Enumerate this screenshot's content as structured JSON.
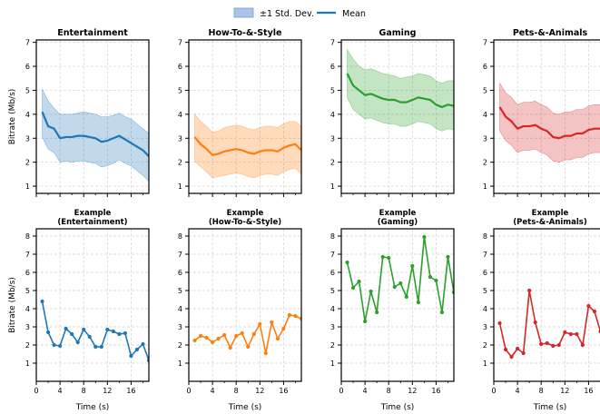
{
  "legend": {
    "band_label": "±1 Std. Dev.",
    "mean_label": "Mean",
    "band_color": "#a9c4e6",
    "mean_color": "#1f77b4"
  },
  "colors": {
    "blue": "#1f77b4",
    "orange": "#ff7f0e",
    "green": "#2ca02c",
    "red": "#d62728"
  },
  "chart_data": [
    {
      "type": "area",
      "title": "Entertainment",
      "ylabel": "Bitrate (Mb/s)",
      "xlabel": "",
      "ylim": [
        0.7,
        7.1
      ],
      "xlim": [
        0,
        19
      ],
      "grid": true,
      "color": "#1f77b4",
      "x": [
        1,
        2,
        3,
        4,
        5,
        6,
        7,
        8,
        9,
        10,
        11,
        12,
        13,
        14,
        15,
        16,
        17,
        18,
        19
      ],
      "mean": [
        4.1,
        3.5,
        3.4,
        3.0,
        3.05,
        3.05,
        3.1,
        3.1,
        3.05,
        3.0,
        2.85,
        2.9,
        3.0,
        3.1,
        2.95,
        2.8,
        2.65,
        2.5,
        2.25
      ],
      "upper": [
        5.05,
        4.55,
        4.25,
        4.0,
        4.0,
        4.0,
        4.05,
        4.1,
        4.05,
        4.0,
        3.9,
        3.9,
        3.95,
        4.05,
        3.9,
        3.8,
        3.6,
        3.4,
        3.2
      ],
      "lower": [
        3.05,
        2.55,
        2.4,
        2.0,
        2.05,
        2.0,
        2.05,
        2.05,
        2.0,
        1.95,
        1.8,
        1.85,
        1.95,
        2.1,
        1.95,
        1.85,
        1.65,
        1.45,
        1.2
      ],
      "yticks": [
        1,
        2,
        3,
        4,
        5,
        6,
        7
      ],
      "xticks": []
    },
    {
      "type": "area",
      "title": "How-To-&-Style",
      "ylabel": "",
      "xlabel": "",
      "ylim": [
        0.7,
        7.1
      ],
      "xlim": [
        0,
        19
      ],
      "grid": true,
      "color": "#ff7f0e",
      "x": [
        1,
        2,
        3,
        4,
        5,
        6,
        7,
        8,
        9,
        10,
        11,
        12,
        13,
        14,
        15,
        16,
        17,
        18,
        19
      ],
      "mean": [
        3.05,
        2.75,
        2.55,
        2.3,
        2.35,
        2.45,
        2.5,
        2.55,
        2.5,
        2.4,
        2.35,
        2.45,
        2.5,
        2.5,
        2.45,
        2.6,
        2.7,
        2.75,
        2.5
      ],
      "upper": [
        4.0,
        3.7,
        3.5,
        3.25,
        3.3,
        3.45,
        3.5,
        3.55,
        3.5,
        3.4,
        3.35,
        3.45,
        3.5,
        3.5,
        3.45,
        3.6,
        3.7,
        3.7,
        3.5
      ],
      "lower": [
        2.05,
        1.8,
        1.6,
        1.35,
        1.4,
        1.45,
        1.5,
        1.55,
        1.5,
        1.4,
        1.35,
        1.45,
        1.5,
        1.5,
        1.45,
        1.6,
        1.7,
        1.75,
        1.5
      ],
      "yticks": [
        1,
        2,
        3,
        4,
        5,
        6,
        7
      ],
      "xticks": []
    },
    {
      "type": "area",
      "title": "Gaming",
      "ylabel": "",
      "xlabel": "",
      "ylim": [
        0.7,
        7.1
      ],
      "xlim": [
        0,
        19
      ],
      "grid": true,
      "color": "#2ca02c",
      "x": [
        1,
        2,
        3,
        4,
        5,
        6,
        7,
        8,
        9,
        10,
        11,
        12,
        13,
        14,
        15,
        16,
        17,
        18,
        19
      ],
      "mean": [
        5.7,
        5.2,
        5.0,
        4.8,
        4.85,
        4.75,
        4.65,
        4.6,
        4.6,
        4.5,
        4.5,
        4.6,
        4.7,
        4.65,
        4.6,
        4.4,
        4.3,
        4.4,
        4.35
      ],
      "upper": [
        6.7,
        6.3,
        6.0,
        5.85,
        5.9,
        5.8,
        5.7,
        5.65,
        5.6,
        5.5,
        5.55,
        5.6,
        5.7,
        5.65,
        5.6,
        5.4,
        5.3,
        5.4,
        5.4
      ],
      "lower": [
        4.7,
        4.2,
        4.0,
        3.8,
        3.85,
        3.75,
        3.65,
        3.6,
        3.6,
        3.5,
        3.5,
        3.6,
        3.7,
        3.65,
        3.6,
        3.4,
        3.3,
        3.4,
        3.35
      ],
      "yticks": [
        1,
        2,
        3,
        4,
        5,
        6,
        7
      ],
      "xticks": []
    },
    {
      "type": "area",
      "title": "Pets-&-Animals",
      "ylabel": "",
      "xlabel": "",
      "ylim": [
        0.7,
        7.1
      ],
      "xlim": [
        0,
        19
      ],
      "grid": true,
      "color": "#d62728",
      "x": [
        1,
        2,
        3,
        4,
        5,
        6,
        7,
        8,
        9,
        10,
        11,
        12,
        13,
        14,
        15,
        16,
        17,
        18,
        19
      ],
      "mean": [
        4.3,
        3.9,
        3.7,
        3.4,
        3.5,
        3.5,
        3.55,
        3.4,
        3.3,
        3.05,
        3.0,
        3.1,
        3.1,
        3.2,
        3.2,
        3.35,
        3.4,
        3.4,
        3.2
      ],
      "upper": [
        5.3,
        4.9,
        4.7,
        4.4,
        4.5,
        4.5,
        4.55,
        4.4,
        4.3,
        4.05,
        4.0,
        4.1,
        4.1,
        4.2,
        4.2,
        4.35,
        4.4,
        4.4,
        4.2
      ],
      "lower": [
        3.3,
        2.9,
        2.7,
        2.4,
        2.5,
        2.5,
        2.55,
        2.4,
        2.3,
        2.05,
        2.0,
        2.1,
        2.1,
        2.2,
        2.2,
        2.35,
        2.4,
        2.4,
        2.2
      ],
      "yticks": [
        1,
        2,
        3,
        4,
        5,
        6,
        7
      ],
      "xticks": []
    },
    {
      "type": "line",
      "title": "Example\n(Entertainment)",
      "ylabel": "Bitrate (Mb/s)",
      "xlabel": "Time (s)",
      "ylim": [
        0,
        8.4
      ],
      "xlim": [
        0,
        19
      ],
      "grid": true,
      "color": "#1f77b4",
      "x": [
        1,
        2,
        3,
        4,
        5,
        6,
        7,
        8,
        9,
        10,
        11,
        12,
        13,
        14,
        15,
        16,
        17,
        18,
        19
      ],
      "y": [
        4.4,
        2.7,
        2.0,
        1.95,
        2.9,
        2.6,
        2.15,
        2.85,
        2.45,
        1.9,
        1.9,
        2.85,
        2.75,
        2.6,
        2.65,
        1.4,
        1.75,
        2.05,
        1.15
      ],
      "yticks": [
        1,
        2,
        3,
        4,
        5,
        6,
        7,
        8
      ],
      "xticks": [
        0,
        4,
        8,
        12,
        16
      ]
    },
    {
      "type": "line",
      "title": "Example\n(How-To-&-Style)",
      "ylabel": "",
      "xlabel": "Time (s)",
      "ylim": [
        0,
        8.4
      ],
      "xlim": [
        0,
        19
      ],
      "grid": true,
      "color": "#ff7f0e",
      "x": [
        1,
        2,
        3,
        4,
        5,
        6,
        7,
        8,
        9,
        10,
        11,
        12,
        13,
        14,
        15,
        16,
        17,
        18,
        19
      ],
      "y": [
        2.25,
        2.5,
        2.4,
        2.15,
        2.35,
        2.55,
        1.85,
        2.5,
        2.65,
        1.9,
        2.6,
        3.15,
        1.55,
        3.25,
        2.35,
        2.9,
        3.65,
        3.6,
        3.45
      ],
      "yticks": [
        1,
        2,
        3,
        4,
        5,
        6,
        7,
        8
      ],
      "xticks": [
        0,
        4,
        8,
        12,
        16
      ]
    },
    {
      "type": "line",
      "title": "Example\n(Gaming)",
      "ylabel": "",
      "xlabel": "Time (s)",
      "ylim": [
        0,
        8.4
      ],
      "xlim": [
        0,
        19
      ],
      "grid": true,
      "color": "#2ca02c",
      "x": [
        1,
        2,
        3,
        4,
        5,
        6,
        7,
        8,
        9,
        10,
        11,
        12,
        13,
        14,
        15,
        16,
        17,
        18,
        19
      ],
      "y": [
        6.55,
        5.15,
        5.5,
        3.3,
        4.95,
        3.8,
        6.85,
        6.8,
        5.2,
        5.4,
        4.65,
        6.35,
        4.35,
        7.95,
        5.75,
        5.55,
        3.8,
        6.85,
        4.9
      ],
      "yticks": [
        1,
        2,
        3,
        4,
        5,
        6,
        7,
        8
      ],
      "xticks": [
        0,
        4,
        8,
        12,
        16
      ]
    },
    {
      "type": "line",
      "title": "Example\n(Pets-&-Animals)",
      "ylabel": "",
      "xlabel": "Time (s)",
      "ylim": [
        0,
        8.4
      ],
      "xlim": [
        0,
        19
      ],
      "grid": true,
      "color": "#d62728",
      "x": [
        1,
        2,
        3,
        4,
        5,
        6,
        7,
        8,
        9,
        10,
        11,
        12,
        13,
        14,
        15,
        16,
        17,
        18,
        19
      ],
      "y": [
        3.2,
        1.75,
        1.35,
        1.8,
        1.55,
        5.0,
        3.25,
        2.05,
        2.1,
        1.95,
        2.0,
        2.7,
        2.6,
        2.6,
        2.0,
        4.15,
        3.85,
        2.75,
        1.95
      ],
      "yticks": [
        1,
        2,
        3,
        4,
        5,
        6,
        7,
        8
      ],
      "xticks": [
        0,
        4,
        8,
        12,
        16
      ]
    }
  ]
}
